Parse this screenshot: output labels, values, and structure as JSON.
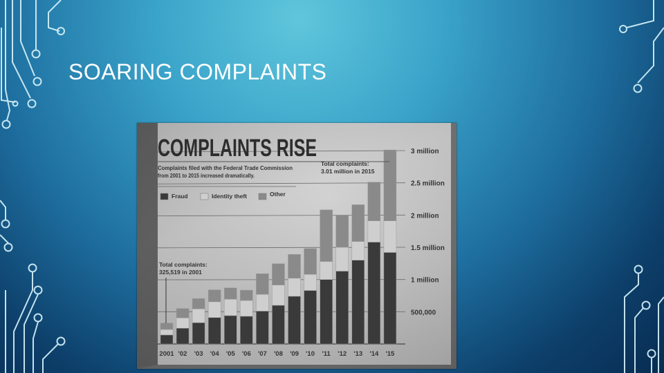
{
  "slide": {
    "title": "SOARING COMPLAINTS"
  },
  "chart_data": {
    "type": "bar",
    "stacked": true,
    "title": "COMPLAINTS RISE",
    "subtitle": "Complaints filed with the Federal Trade Commission from 2001 to 2015 increased dramatically.",
    "annotations": {
      "total_2015": [
        "Total complaints:",
        "3.01 million in 2015"
      ],
      "total_2001": [
        "Total complaints:",
        "325,519 in 2001"
      ]
    },
    "categories": [
      "2001",
      "'02",
      "'03",
      "'04",
      "'05",
      "'06",
      "'07",
      "'08",
      "'09",
      "'10",
      "'11",
      "'12",
      "'13",
      "'14",
      "'15"
    ],
    "series": [
      {
        "name": "Fraud",
        "color": "#3a3a3a",
        "values": [
          140000,
          245000,
          330000,
          410000,
          440000,
          430000,
          510000,
          600000,
          740000,
          830000,
          1000000,
          1130000,
          1300000,
          1580000,
          1420000
        ]
      },
      {
        "name": "Identity theft",
        "color": "#cfcfcf",
        "values": [
          85000,
          160000,
          215000,
          245000,
          255000,
          245000,
          260000,
          315000,
          280000,
          250000,
          280000,
          370000,
          290000,
          330000,
          490000
        ]
      },
      {
        "name": "Other",
        "color": "#8a8a8a",
        "values": [
          100000,
          145000,
          160000,
          185000,
          175000,
          160000,
          320000,
          330000,
          370000,
          400000,
          800000,
          500000,
          570000,
          600000,
          1100000
        ]
      }
    ],
    "ylim": [
      0,
      3000000
    ],
    "yticks": [
      500000,
      1000000,
      1500000,
      2000000,
      2500000,
      3000000
    ],
    "ytick_labels": [
      "500,000",
      "1 million",
      "1.5 million",
      "2 million",
      "2.5 million",
      "3 million"
    ],
    "legend": "top-left",
    "grid": true
  }
}
